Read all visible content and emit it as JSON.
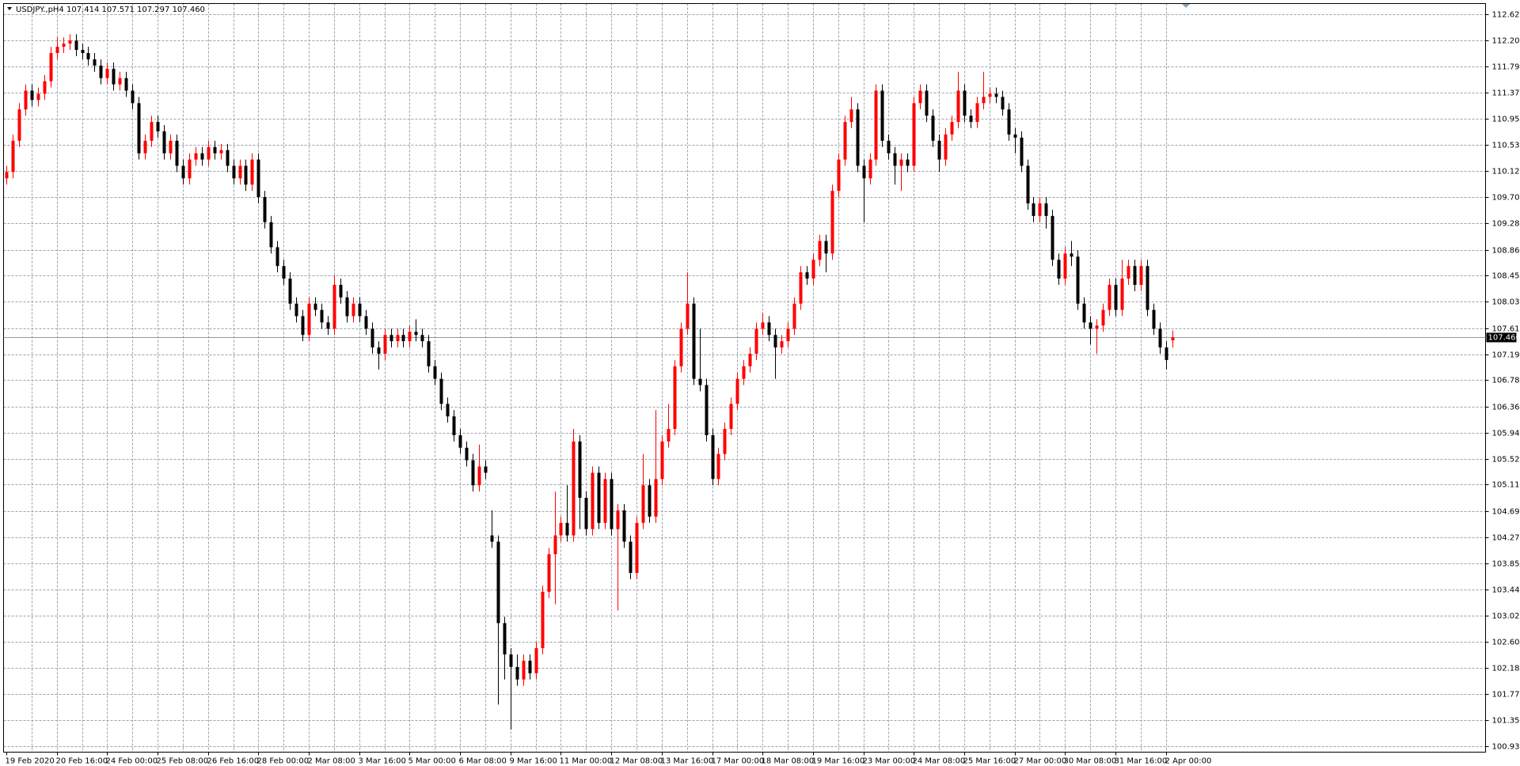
{
  "chart_data": {
    "type": "candlestick",
    "title": "USDJPY.,pH4  107.414 107.571 107.297 107.460",
    "up_color": "#ff0000",
    "down_color": "#000000",
    "grid": true,
    "categories": [
      "19 Feb 2020",
      null,
      null,
      null,
      null,
      null,
      null,
      null,
      "20 Feb 16:00",
      null,
      null,
      null,
      null,
      null,
      null,
      null,
      "24 Feb 00:00",
      null,
      null,
      null,
      null,
      null,
      null,
      null,
      "25 Feb 08:00",
      null,
      null,
      null,
      null,
      null,
      null,
      null,
      "26 Feb 16:00",
      null,
      null,
      null,
      null,
      null,
      null,
      null,
      "28 Feb 00:00",
      null,
      null,
      null,
      null,
      null,
      null,
      null,
      "2 Mar 08:00",
      null,
      null,
      null,
      null,
      null,
      null,
      null,
      "3 Mar 16:00",
      null,
      null,
      null,
      null,
      null,
      null,
      null,
      "5 Mar 00:00",
      null,
      null,
      null,
      null,
      null,
      null,
      null,
      "6 Mar 08:00",
      null,
      null,
      null,
      null,
      null,
      null,
      null,
      "9 Mar 16:00",
      null,
      null,
      null,
      null,
      null,
      null,
      null,
      "11 Mar 00:00",
      null,
      null,
      null,
      null,
      null,
      null,
      null,
      "12 Mar 08:00",
      null,
      null,
      null,
      null,
      null,
      null,
      null,
      "13 Mar 16:00",
      null,
      null,
      null,
      null,
      null,
      null,
      null,
      "17 Mar 00:00",
      null,
      null,
      null,
      null,
      null,
      null,
      null,
      "18 Mar 08:00",
      null,
      null,
      null,
      null,
      null,
      null,
      null,
      "19 Mar 16:00",
      null,
      null,
      null,
      null,
      null,
      null,
      null,
      "23 Mar 00:00",
      null,
      null,
      null,
      null,
      null,
      null,
      null,
      "24 Mar 08:00",
      null,
      null,
      null,
      null,
      null,
      null,
      null,
      "25 Mar 16:00",
      null,
      null,
      null,
      null,
      null,
      null,
      null,
      "27 Mar 00:00",
      null,
      null,
      null,
      null,
      null,
      null,
      null,
      "30 Mar 08:00",
      null,
      null,
      null,
      null,
      null,
      null,
      null,
      "31 Mar 16:00",
      null,
      null,
      null,
      null,
      null,
      null,
      null,
      "2 Apr 00:00",
      null
    ],
    "open": [
      110.0,
      110.1,
      110.6,
      111.1,
      111.4,
      111.25,
      111.35,
      111.55,
      112.0,
      112.1,
      112.15,
      112.2,
      112.05,
      112.0,
      111.9,
      111.8,
      111.6,
      111.75,
      111.5,
      111.6,
      111.4,
      111.2,
      110.4,
      110.6,
      110.9,
      110.75,
      110.4,
      110.6,
      110.2,
      110.0,
      110.3,
      110.4,
      110.3,
      110.5,
      110.4,
      110.45,
      110.2,
      110.0,
      110.2,
      109.9,
      110.3,
      109.7,
      109.3,
      108.9,
      108.6,
      108.4,
      108.0,
      107.8,
      107.5,
      108.0,
      107.9,
      107.7,
      107.6,
      108.3,
      108.1,
      107.8,
      108.0,
      107.8,
      107.6,
      107.3,
      107.2,
      107.5,
      107.4,
      107.5,
      107.4,
      107.55,
      107.5,
      107.4,
      107.0,
      106.8,
      106.4,
      106.2,
      105.9,
      105.7,
      105.5,
      105.1,
      105.4,
      104.3,
      104.2,
      102.9,
      102.4,
      102.2,
      102.0,
      102.3,
      102.1,
      102.5,
      103.4,
      104.0,
      104.3,
      104.5,
      104.3,
      105.8,
      104.9,
      104.4,
      105.3,
      104.5,
      105.2,
      104.4,
      104.7,
      104.2,
      103.7,
      104.5,
      105.1,
      104.6,
      105.2,
      105.8,
      106.0,
      107.0,
      107.6,
      108.0,
      106.8,
      106.7,
      105.9,
      105.2,
      105.6,
      106.0,
      106.4,
      106.8,
      107.0,
      107.2,
      107.6,
      107.7,
      107.5,
      107.3,
      107.4,
      107.6,
      108.0,
      108.5,
      108.4,
      108.7,
      109.0,
      108.8,
      109.8,
      110.3,
      110.9,
      111.1,
      110.2,
      110.0,
      110.3,
      111.4,
      110.6,
      110.4,
      110.2,
      110.3,
      110.2,
      111.2,
      111.4,
      111.0,
      110.6,
      110.3,
      110.7,
      110.9,
      111.4,
      111.0,
      110.9,
      111.2,
      111.3,
      111.35,
      111.3,
      111.1,
      110.7,
      110.65,
      110.2,
      109.6,
      109.4,
      109.6,
      109.4,
      108.7,
      108.4,
      108.8,
      108.75,
      108.0,
      107.7,
      107.6,
      107.65,
      107.9,
      108.3,
      107.9,
      108.4,
      108.6,
      108.3,
      108.6,
      107.9,
      107.6,
      107.3,
      107.414
    ],
    "high": [
      110.2,
      110.7,
      111.2,
      111.5,
      111.5,
      111.45,
      111.65,
      112.1,
      112.25,
      112.25,
      112.3,
      112.3,
      112.15,
      112.1,
      112.0,
      111.9,
      111.85,
      111.85,
      111.7,
      111.7,
      111.5,
      111.3,
      110.7,
      111.0,
      111.0,
      110.85,
      110.7,
      110.7,
      110.3,
      110.4,
      110.5,
      110.5,
      110.6,
      110.6,
      110.55,
      110.55,
      110.3,
      110.3,
      110.3,
      110.4,
      110.4,
      109.8,
      109.4,
      109.0,
      108.7,
      108.5,
      108.1,
      107.9,
      108.1,
      108.1,
      108.0,
      107.8,
      108.45,
      108.4,
      108.2,
      108.1,
      108.1,
      107.9,
      107.7,
      107.4,
      107.6,
      107.6,
      107.6,
      107.6,
      107.65,
      107.75,
      107.6,
      107.5,
      107.1,
      106.9,
      106.5,
      106.3,
      106.0,
      105.8,
      105.6,
      105.75,
      105.5,
      104.7,
      104.3,
      103.0,
      102.5,
      102.4,
      102.4,
      102.4,
      102.6,
      103.5,
      104.1,
      105.0,
      104.6,
      105.1,
      106.0,
      105.9,
      105.0,
      105.4,
      105.4,
      105.3,
      105.3,
      104.8,
      104.8,
      104.3,
      104.6,
      105.6,
      105.2,
      106.3,
      105.9,
      106.4,
      107.1,
      107.7,
      108.5,
      108.1,
      107.6,
      106.8,
      106.0,
      105.7,
      106.1,
      106.5,
      106.9,
      107.1,
      107.3,
      107.7,
      107.85,
      107.8,
      107.6,
      107.5,
      107.7,
      108.1,
      108.6,
      108.6,
      108.8,
      109.1,
      109.1,
      109.9,
      110.4,
      111.0,
      111.3,
      111.2,
      110.3,
      110.4,
      111.5,
      111.5,
      110.7,
      110.5,
      110.4,
      110.4,
      111.3,
      111.5,
      111.5,
      111.1,
      110.7,
      110.8,
      111.0,
      111.7,
      111.5,
      111.1,
      111.3,
      111.7,
      111.45,
      111.45,
      111.4,
      111.2,
      110.8,
      110.75,
      110.3,
      109.7,
      109.7,
      109.7,
      109.5,
      108.8,
      108.9,
      109.0,
      108.85,
      108.1,
      107.8,
      107.75,
      108.0,
      108.4,
      108.4,
      108.7,
      108.7,
      108.7,
      108.7,
      108.7,
      108.0,
      107.7,
      107.4,
      107.571
    ],
    "low": [
      109.9,
      110.0,
      110.5,
      111.0,
      111.15,
      111.15,
      111.25,
      111.45,
      111.9,
      112.0,
      112.05,
      111.95,
      111.9,
      111.8,
      111.7,
      111.5,
      111.5,
      111.4,
      111.4,
      111.3,
      111.1,
      110.3,
      110.3,
      110.5,
      110.65,
      110.3,
      110.3,
      110.1,
      109.9,
      109.9,
      110.2,
      110.2,
      110.2,
      110.3,
      110.3,
      110.1,
      109.9,
      109.9,
      109.8,
      109.8,
      109.6,
      109.2,
      108.8,
      108.5,
      108.3,
      107.9,
      107.7,
      107.4,
      107.4,
      107.8,
      107.6,
      107.5,
      107.5,
      108.0,
      107.7,
      107.7,
      107.7,
      107.5,
      107.2,
      106.95,
      107.1,
      107.3,
      107.3,
      107.3,
      107.3,
      107.4,
      107.3,
      106.9,
      106.7,
      106.3,
      106.1,
      105.8,
      105.6,
      105.4,
      105.0,
      105.0,
      105.2,
      104.1,
      101.6,
      102.0,
      101.2,
      101.9,
      101.9,
      102.0,
      102.0,
      102.4,
      103.3,
      103.2,
      104.2,
      104.2,
      104.2,
      104.4,
      104.3,
      104.3,
      104.4,
      104.4,
      104.3,
      103.1,
      104.1,
      103.6,
      103.6,
      104.4,
      104.5,
      104.5,
      105.1,
      105.7,
      105.9,
      106.9,
      107.5,
      106.7,
      106.6,
      105.8,
      105.1,
      105.1,
      105.5,
      105.9,
      106.3,
      106.7,
      106.9,
      107.1,
      107.5,
      107.4,
      106.8,
      107.2,
      107.3,
      107.5,
      107.9,
      108.3,
      108.3,
      108.6,
      108.5,
      108.7,
      109.7,
      110.2,
      110.8,
      110.1,
      109.3,
      109.9,
      110.2,
      110.5,
      110.3,
      109.9,
      109.8,
      110.1,
      110.1,
      111.1,
      110.9,
      110.5,
      110.1,
      110.2,
      110.6,
      110.8,
      110.9,
      110.8,
      110.8,
      111.1,
      111.2,
      111.2,
      111.0,
      110.6,
      110.4,
      110.1,
      109.5,
      109.3,
      109.3,
      109.2,
      108.6,
      108.3,
      108.3,
      108.6,
      107.9,
      107.6,
      107.35,
      107.2,
      107.55,
      107.8,
      107.8,
      107.8,
      108.3,
      108.2,
      108.2,
      107.8,
      107.5,
      107.2,
      106.95,
      107.297
    ],
    "close": [
      110.1,
      110.6,
      111.1,
      111.4,
      111.25,
      111.35,
      111.55,
      112.0,
      112.1,
      112.15,
      112.2,
      112.05,
      112.0,
      111.9,
      111.8,
      111.6,
      111.75,
      111.5,
      111.6,
      111.4,
      111.2,
      110.4,
      110.6,
      110.9,
      110.75,
      110.4,
      110.6,
      110.2,
      110.0,
      110.3,
      110.4,
      110.3,
      110.5,
      110.4,
      110.45,
      110.2,
      110.0,
      110.2,
      109.9,
      110.3,
      109.7,
      109.3,
      108.9,
      108.6,
      108.4,
      108.0,
      107.8,
      107.5,
      108.0,
      107.9,
      107.7,
      107.6,
      108.3,
      108.1,
      107.8,
      108.0,
      107.8,
      107.6,
      107.3,
      107.2,
      107.5,
      107.4,
      107.5,
      107.4,
      107.55,
      107.5,
      107.4,
      107.0,
      106.8,
      106.4,
      106.2,
      105.9,
      105.7,
      105.5,
      105.1,
      105.4,
      105.3,
      104.2,
      102.9,
      102.4,
      102.2,
      102.0,
      102.3,
      102.1,
      102.5,
      103.4,
      104.0,
      104.3,
      104.5,
      104.3,
      105.8,
      104.9,
      104.4,
      105.3,
      104.5,
      105.2,
      104.4,
      104.7,
      104.2,
      103.7,
      104.5,
      105.1,
      104.6,
      105.2,
      105.8,
      106.0,
      107.0,
      107.6,
      108.0,
      106.8,
      106.7,
      105.9,
      105.2,
      105.6,
      106.0,
      106.4,
      106.8,
      107.0,
      107.2,
      107.6,
      107.7,
      107.5,
      107.3,
      107.4,
      107.6,
      108.0,
      108.5,
      108.4,
      108.7,
      109.0,
      108.8,
      109.8,
      110.3,
      110.9,
      111.1,
      110.2,
      110.0,
      110.3,
      111.4,
      110.6,
      110.4,
      110.2,
      110.3,
      110.2,
      111.2,
      111.4,
      111.0,
      110.6,
      110.3,
      110.7,
      110.9,
      111.4,
      111.0,
      110.9,
      111.2,
      111.3,
      111.35,
      111.3,
      111.1,
      110.7,
      110.65,
      110.2,
      109.6,
      109.4,
      109.6,
      109.4,
      108.7,
      108.4,
      108.8,
      108.75,
      108.0,
      107.7,
      107.6,
      107.65,
      107.9,
      108.3,
      107.9,
      108.4,
      108.6,
      108.3,
      108.6,
      107.9,
      107.6,
      107.3,
      107.1,
      107.46
    ],
    "ylim": [
      100.84,
      112.79
    ],
    "yticks": [
      {
        "value": 112.62,
        "label": "112.620"
      },
      {
        "value": 112.2,
        "label": "112.200"
      },
      {
        "value": 111.79,
        "label": "111.790"
      },
      {
        "value": 111.37,
        "label": "111.370"
      },
      {
        "value": 110.95,
        "label": "110.950"
      },
      {
        "value": 110.53,
        "label": "110.530"
      },
      {
        "value": 110.12,
        "label": "110.120"
      },
      {
        "value": 109.7,
        "label": "109.700"
      },
      {
        "value": 109.28,
        "label": "109.280"
      },
      {
        "value": 108.86,
        "label": "108.860"
      },
      {
        "value": 108.45,
        "label": "108.450"
      },
      {
        "value": 108.03,
        "label": "108.030"
      },
      {
        "value": 107.61,
        "label": "107.610"
      },
      {
        "value": 107.19,
        "label": "107.190"
      },
      {
        "value": 106.78,
        "label": "106.780"
      },
      {
        "value": 106.36,
        "label": "106.360"
      },
      {
        "value": 105.94,
        "label": "105.940"
      },
      {
        "value": 105.52,
        "label": "105.520"
      },
      {
        "value": 105.11,
        "label": "105.110"
      },
      {
        "value": 104.69,
        "label": "104.690"
      },
      {
        "value": 104.27,
        "label": "104.270"
      },
      {
        "value": 103.85,
        "label": "103.850"
      },
      {
        "value": 103.44,
        "label": "103.440"
      },
      {
        "value": 103.02,
        "label": "103.020"
      },
      {
        "value": 102.6,
        "label": "102.600"
      },
      {
        "value": 102.18,
        "label": "102.180"
      },
      {
        "value": 101.77,
        "label": "101.770"
      },
      {
        "value": 101.35,
        "label": "101.350"
      },
      {
        "value": 100.93,
        "label": "100.930"
      }
    ],
    "last_price": {
      "value": 107.46,
      "label": "107.460"
    }
  }
}
